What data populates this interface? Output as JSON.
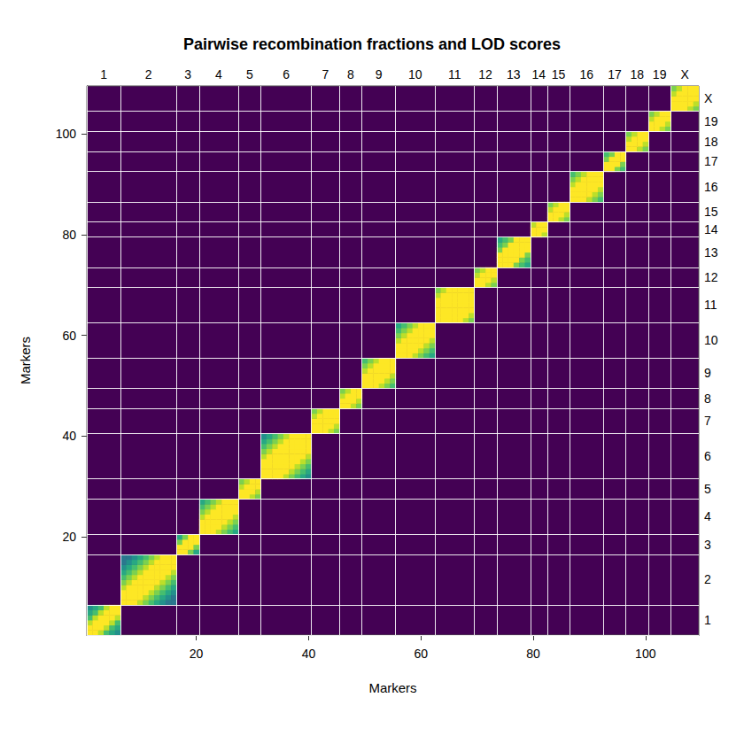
{
  "chart_data": {
    "type": "heatmap",
    "title": "Pairwise recombination fractions and LOD scores",
    "x_label": "Markers",
    "y_label": "Markers",
    "xlim": [
      0.5,
      109.5
    ],
    "ylim": [
      0.5,
      109.5
    ],
    "xticks": [
      20,
      40,
      60,
      80,
      100
    ],
    "yticks": [
      20,
      40,
      60,
      80,
      100
    ],
    "color_range": [
      0,
      10
    ],
    "colors": [
      "#440154",
      "#482878",
      "#3e4989",
      "#31688e",
      "#26828e",
      "#1f9e89",
      "#35b779",
      "#6ece58",
      "#b5de2b",
      "#fde725"
    ],
    "chromosomes": [
      {
        "name": "1",
        "start": 1,
        "cells": [
          [
            10,
            10,
            9,
            7,
            6,
            5
          ],
          [
            10,
            10,
            10,
            9,
            7,
            6
          ],
          [
            9,
            10,
            10,
            10,
            9,
            7
          ],
          [
            7,
            9,
            10,
            10,
            10,
            9
          ],
          [
            6,
            7,
            9,
            10,
            10,
            10
          ],
          [
            5,
            6,
            7,
            9,
            10,
            10
          ]
        ]
      },
      {
        "name": "2",
        "start": 7,
        "cells": [
          [
            10,
            10,
            10,
            9,
            8,
            7,
            6,
            5,
            4,
            4
          ],
          [
            10,
            10,
            10,
            10,
            9,
            8,
            7,
            6,
            5,
            4
          ],
          [
            10,
            10,
            10,
            10,
            10,
            9,
            8,
            7,
            6,
            5
          ],
          [
            9,
            10,
            10,
            10,
            10,
            10,
            9,
            8,
            7,
            6
          ],
          [
            8,
            9,
            10,
            10,
            10,
            10,
            10,
            9,
            8,
            7
          ],
          [
            7,
            8,
            9,
            10,
            10,
            10,
            10,
            10,
            9,
            8
          ],
          [
            6,
            7,
            8,
            9,
            10,
            10,
            10,
            10,
            10,
            9
          ],
          [
            5,
            6,
            7,
            8,
            9,
            10,
            10,
            10,
            10,
            10
          ],
          [
            4,
            5,
            6,
            7,
            8,
            9,
            10,
            10,
            10,
            10
          ],
          [
            4,
            4,
            5,
            6,
            7,
            8,
            9,
            10,
            10,
            10
          ]
        ]
      },
      {
        "name": "3",
        "start": 17,
        "cells": [
          [
            10,
            10,
            8,
            6
          ],
          [
            10,
            10,
            10,
            8
          ],
          [
            8,
            10,
            10,
            10
          ],
          [
            6,
            8,
            10,
            10
          ]
        ]
      },
      {
        "name": "4",
        "start": 21,
        "cells": [
          [
            10,
            10,
            10,
            9,
            8,
            7,
            6
          ],
          [
            10,
            10,
            10,
            10,
            9,
            8,
            7
          ],
          [
            10,
            10,
            10,
            10,
            10,
            9,
            8
          ],
          [
            9,
            10,
            10,
            10,
            10,
            10,
            9
          ],
          [
            8,
            9,
            10,
            10,
            10,
            10,
            10
          ],
          [
            7,
            8,
            9,
            10,
            10,
            10,
            10
          ],
          [
            6,
            7,
            8,
            9,
            10,
            10,
            10
          ]
        ]
      },
      {
        "name": "5",
        "start": 28,
        "cells": [
          [
            10,
            10,
            9,
            8
          ],
          [
            10,
            10,
            10,
            9
          ],
          [
            9,
            10,
            10,
            10
          ],
          [
            8,
            9,
            10,
            10
          ]
        ]
      },
      {
        "name": "6",
        "start": 32,
        "cells": [
          [
            10,
            10,
            10,
            10,
            9,
            8,
            7,
            6,
            5
          ],
          [
            10,
            10,
            10,
            10,
            10,
            9,
            8,
            7,
            6
          ],
          [
            10,
            10,
            10,
            10,
            10,
            10,
            9,
            8,
            7
          ],
          [
            10,
            10,
            10,
            10,
            10,
            10,
            10,
            9,
            8
          ],
          [
            9,
            10,
            10,
            10,
            10,
            10,
            10,
            10,
            9
          ],
          [
            8,
            9,
            10,
            10,
            10,
            10,
            10,
            10,
            10
          ],
          [
            7,
            8,
            9,
            10,
            10,
            10,
            10,
            10,
            10
          ],
          [
            6,
            7,
            8,
            9,
            10,
            10,
            10,
            10,
            10
          ],
          [
            5,
            6,
            7,
            8,
            9,
            10,
            10,
            10,
            10
          ]
        ]
      },
      {
        "name": "7",
        "start": 41,
        "cells": [
          [
            10,
            10,
            10,
            9,
            8
          ],
          [
            10,
            10,
            10,
            10,
            9
          ],
          [
            10,
            10,
            10,
            10,
            10
          ],
          [
            9,
            10,
            10,
            10,
            10
          ],
          [
            8,
            9,
            10,
            10,
            10
          ]
        ]
      },
      {
        "name": "8",
        "start": 46,
        "cells": [
          [
            10,
            10,
            9,
            8
          ],
          [
            10,
            10,
            10,
            9
          ],
          [
            9,
            10,
            10,
            10
          ],
          [
            8,
            9,
            10,
            10
          ]
        ]
      },
      {
        "name": "9",
        "start": 50,
        "cells": [
          [
            10,
            10,
            10,
            9,
            8,
            7
          ],
          [
            10,
            10,
            10,
            10,
            9,
            8
          ],
          [
            10,
            10,
            10,
            10,
            10,
            9
          ],
          [
            9,
            10,
            10,
            10,
            10,
            10
          ],
          [
            8,
            9,
            10,
            10,
            10,
            10
          ],
          [
            7,
            8,
            9,
            10,
            10,
            10
          ]
        ]
      },
      {
        "name": "10",
        "start": 56,
        "cells": [
          [
            10,
            10,
            10,
            9,
            8,
            7,
            6
          ],
          [
            10,
            10,
            10,
            10,
            9,
            8,
            7
          ],
          [
            10,
            10,
            10,
            10,
            10,
            9,
            8
          ],
          [
            9,
            10,
            10,
            10,
            10,
            10,
            9
          ],
          [
            8,
            9,
            10,
            10,
            10,
            10,
            10
          ],
          [
            7,
            8,
            9,
            10,
            10,
            10,
            10
          ],
          [
            6,
            7,
            8,
            9,
            10,
            10,
            10
          ]
        ]
      },
      {
        "name": "11",
        "start": 63,
        "cells": [
          [
            10,
            10,
            10,
            10,
            10,
            9,
            8
          ],
          [
            10,
            10,
            10,
            10,
            10,
            10,
            9
          ],
          [
            10,
            10,
            10,
            10,
            10,
            10,
            10
          ],
          [
            10,
            10,
            10,
            10,
            10,
            10,
            10
          ],
          [
            10,
            10,
            10,
            10,
            10,
            10,
            10
          ],
          [
            9,
            10,
            10,
            10,
            10,
            10,
            10
          ],
          [
            8,
            9,
            10,
            10,
            10,
            10,
            10
          ]
        ]
      },
      {
        "name": "12",
        "start": 70,
        "cells": [
          [
            10,
            10,
            9,
            8
          ],
          [
            10,
            10,
            10,
            9
          ],
          [
            9,
            10,
            10,
            10
          ],
          [
            8,
            9,
            10,
            10
          ]
        ]
      },
      {
        "name": "13",
        "start": 74,
        "cells": [
          [
            10,
            10,
            10,
            8,
            7,
            6
          ],
          [
            10,
            10,
            10,
            10,
            8,
            7
          ],
          [
            10,
            10,
            10,
            10,
            10,
            8
          ],
          [
            8,
            10,
            10,
            10,
            10,
            10
          ],
          [
            7,
            8,
            10,
            10,
            10,
            10
          ],
          [
            6,
            7,
            8,
            10,
            10,
            10
          ]
        ]
      },
      {
        "name": "14",
        "start": 80,
        "cells": [
          [
            10,
            10,
            9
          ],
          [
            10,
            10,
            10
          ],
          [
            9,
            10,
            10
          ]
        ]
      },
      {
        "name": "15",
        "start": 83,
        "cells": [
          [
            10,
            10,
            9,
            8
          ],
          [
            10,
            10,
            10,
            9
          ],
          [
            9,
            10,
            10,
            10
          ],
          [
            8,
            9,
            10,
            10
          ]
        ]
      },
      {
        "name": "16",
        "start": 87,
        "cells": [
          [
            10,
            10,
            10,
            9,
            8,
            7
          ],
          [
            10,
            10,
            10,
            10,
            9,
            8
          ],
          [
            10,
            10,
            10,
            10,
            10,
            9
          ],
          [
            9,
            10,
            10,
            10,
            10,
            10
          ],
          [
            8,
            9,
            10,
            10,
            10,
            10
          ],
          [
            7,
            8,
            9,
            10,
            10,
            10
          ]
        ]
      },
      {
        "name": "17",
        "start": 93,
        "cells": [
          [
            10,
            10,
            8,
            7
          ],
          [
            10,
            10,
            10,
            8
          ],
          [
            8,
            10,
            10,
            10
          ],
          [
            7,
            8,
            10,
            10
          ]
        ]
      },
      {
        "name": "18",
        "start": 97,
        "cells": [
          [
            10,
            10,
            9,
            8
          ],
          [
            10,
            10,
            10,
            9
          ],
          [
            9,
            10,
            10,
            10
          ],
          [
            8,
            9,
            10,
            10
          ]
        ]
      },
      {
        "name": "19",
        "start": 101,
        "cells": [
          [
            10,
            10,
            9,
            8
          ],
          [
            10,
            10,
            10,
            9
          ],
          [
            9,
            10,
            10,
            10
          ],
          [
            8,
            9,
            10,
            10
          ]
        ]
      },
      {
        "name": "X",
        "start": 105,
        "cells": [
          [
            10,
            10,
            10,
            9,
            8
          ],
          [
            10,
            10,
            10,
            10,
            9
          ],
          [
            10,
            10,
            10,
            10,
            10
          ],
          [
            9,
            10,
            10,
            10,
            10
          ],
          [
            8,
            9,
            10,
            10,
            10
          ]
        ]
      }
    ]
  }
}
